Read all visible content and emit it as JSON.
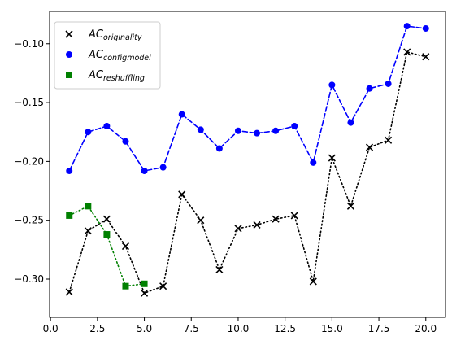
{
  "chart_data": {
    "type": "line",
    "title": "",
    "xlabel": "",
    "ylabel": "",
    "xlim": [
      -0.05,
      21.05
    ],
    "ylim": [
      -0.3325,
      -0.0725
    ],
    "xticks": [
      0.0,
      2.5,
      5.0,
      7.5,
      10.0,
      12.5,
      15.0,
      17.5,
      20.0
    ],
    "xtick_labels": [
      "0.0",
      "2.5",
      "5.0",
      "7.5",
      "10.0",
      "12.5",
      "15.0",
      "17.5",
      "20.0"
    ],
    "yticks": [
      -0.3,
      -0.25,
      -0.2,
      -0.15,
      -0.1
    ],
    "ytick_labels": [
      "−0.30",
      "−0.25",
      "−0.20",
      "−0.15",
      "−0.10"
    ],
    "grid": false,
    "legend_position": "top-left",
    "series": [
      {
        "name": "AC_originality",
        "legend_main": "AC",
        "legend_sub": "originality",
        "marker": "x",
        "line_style": "dotted",
        "color": "#000000",
        "x": [
          1,
          2,
          3,
          4,
          5,
          6,
          7,
          8,
          9,
          10,
          11,
          12,
          13,
          14,
          15,
          16,
          17,
          18,
          19,
          20
        ],
        "y": [
          -0.311,
          -0.259,
          -0.249,
          -0.272,
          -0.312,
          -0.306,
          -0.228,
          -0.25,
          -0.292,
          -0.257,
          -0.254,
          -0.249,
          -0.246,
          -0.302,
          -0.197,
          -0.238,
          -0.188,
          -0.182,
          -0.107,
          -0.111
        ]
      },
      {
        "name": "AC_configmodel",
        "legend_main": "AC",
        "legend_sub": "configmodel",
        "marker": "circle",
        "line_style": "dashed",
        "color": "#0000ff",
        "x": [
          1,
          2,
          3,
          4,
          5,
          6,
          7,
          8,
          9,
          10,
          11,
          12,
          13,
          14,
          15,
          16,
          17,
          18,
          19,
          20
        ],
        "y": [
          -0.208,
          -0.175,
          -0.17,
          -0.183,
          -0.208,
          -0.205,
          -0.16,
          -0.173,
          -0.189,
          -0.174,
          -0.176,
          -0.174,
          -0.17,
          -0.201,
          -0.135,
          -0.167,
          -0.138,
          -0.134,
          -0.085,
          -0.087
        ]
      },
      {
        "name": "AC_reshuffling",
        "legend_main": "AC",
        "legend_sub": "reshuffling",
        "marker": "square",
        "line_style": "dotted",
        "color": "#008000",
        "x": [
          1,
          2,
          3,
          4,
          5
        ],
        "y": [
          -0.246,
          -0.238,
          -0.262,
          -0.306,
          -0.304
        ]
      }
    ]
  }
}
